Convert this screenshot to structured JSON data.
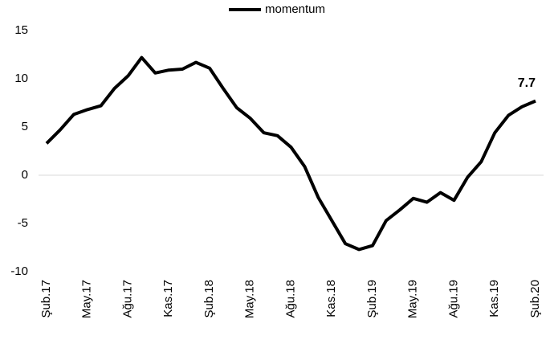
{
  "chart_data": {
    "type": "line",
    "categories": [
      "Şub.17",
      null,
      null,
      "May.17",
      null,
      null,
      "Ağu.17",
      null,
      null,
      "Kas.17",
      null,
      null,
      "Şub.18",
      null,
      null,
      "May.18",
      null,
      null,
      "Ağu.18",
      null,
      null,
      "Kas.18",
      null,
      null,
      "Şub.19",
      null,
      null,
      "May.19",
      null,
      null,
      "Ağu.19",
      null,
      null,
      "Kas.19",
      null,
      null,
      "Şub.20"
    ],
    "series": [
      {
        "name": "momentum",
        "color": "#000000",
        "values": [
          3.3,
          4.7,
          6.3,
          6.8,
          7.2,
          9.0,
          10.3,
          12.2,
          10.6,
          10.9,
          11.0,
          11.7,
          11.1,
          9.0,
          7.0,
          5.9,
          4.4,
          4.1,
          2.9,
          0.9,
          -2.3,
          -4.7,
          -7.1,
          -7.7,
          -7.3,
          -4.7,
          -3.6,
          -2.4,
          -2.8,
          -1.8,
          -2.6,
          -0.2,
          1.4,
          4.4,
          6.2,
          7.1,
          7.7
        ]
      }
    ],
    "ylim": [
      -10,
      15
    ],
    "yticks": [
      -10,
      -5,
      0,
      5,
      10,
      15
    ],
    "legend": "top",
    "grid": false
  }
}
